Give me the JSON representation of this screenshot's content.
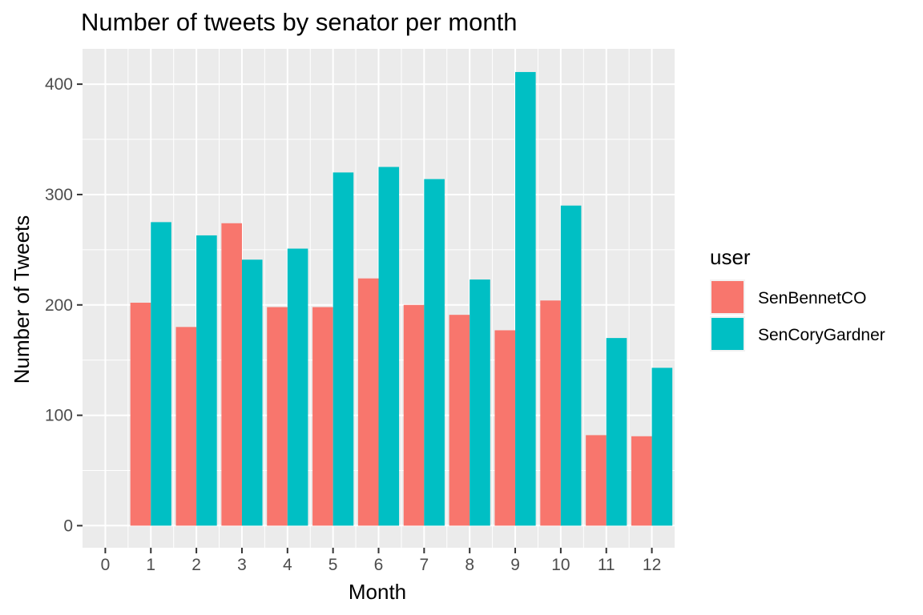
{
  "chart_data": {
    "type": "bar",
    "title": "Number of tweets by senator per month",
    "xlabel": "Month",
    "ylabel": "Number of Tweets",
    "xlim": [
      -0.5,
      12.5
    ],
    "ylim": [
      -20,
      432
    ],
    "x_ticks": [
      0,
      1,
      2,
      3,
      4,
      5,
      6,
      7,
      8,
      9,
      10,
      11,
      12
    ],
    "y_ticks": [
      0,
      100,
      200,
      300,
      400
    ],
    "grid": true,
    "legend_position": "right",
    "legend_title": "user",
    "categories": [
      1,
      2,
      3,
      4,
      5,
      6,
      7,
      8,
      9,
      10,
      11,
      12
    ],
    "series": [
      {
        "name": "SenBennetCO",
        "color": "#F8766D",
        "values": [
          202,
          180,
          274,
          198,
          198,
          224,
          200,
          191,
          177,
          204,
          82,
          81
        ]
      },
      {
        "name": "SenCoryGardner",
        "color": "#00BFC4",
        "values": [
          275,
          263,
          241,
          251,
          320,
          325,
          314,
          223,
          411,
          290,
          170,
          143
        ]
      }
    ],
    "panel_background": "#EBEBEB",
    "grid_color": "#FFFFFF"
  }
}
